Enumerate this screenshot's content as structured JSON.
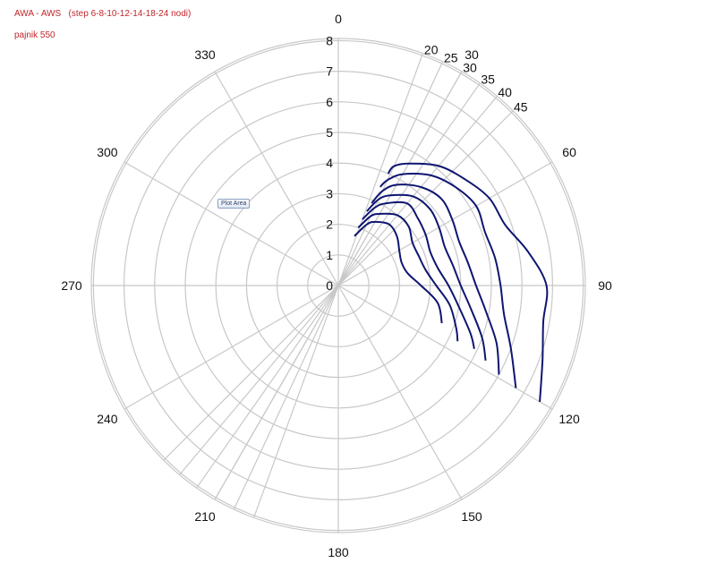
{
  "chart_data": {
    "type": "polar-line",
    "title": "AWA - AWS   (step 6-8-10-12-14-18-24 nodi)",
    "subtitle": "pajnik 550",
    "radial_axis": {
      "range": [
        0,
        8
      ],
      "ticks": [
        "0",
        "1",
        "2",
        "3",
        "4",
        "5",
        "6",
        "7",
        "8"
      ]
    },
    "angular_axis": {
      "ticks": [
        "0",
        "30",
        "60",
        "90",
        "120",
        "150",
        "180",
        "210",
        "240",
        "270",
        "300",
        "330"
      ]
    },
    "angle_annotations": [
      "20",
      "25",
      "30",
      "35",
      "40",
      "45"
    ],
    "grid": true,
    "tooltip": "Plot Area",
    "series": [
      {
        "values": [
          [
            18,
            1.7
          ],
          [
            25,
            2.2
          ],
          [
            30,
            2.4
          ],
          [
            40,
            2.6
          ],
          [
            50,
            2.5
          ],
          [
            60,
            2.3
          ],
          [
            70,
            2.2
          ],
          [
            80,
            2.3
          ],
          [
            90,
            2.7
          ],
          [
            100,
            3.3
          ],
          [
            110,
            3.6
          ]
        ]
      },
      {
        "values": [
          [
            19,
            2.0
          ],
          [
            25,
            2.5
          ],
          [
            30,
            2.7
          ],
          [
            40,
            3.0
          ],
          [
            50,
            3.0
          ],
          [
            60,
            2.8
          ],
          [
            70,
            2.8
          ],
          [
            80,
            2.9
          ],
          [
            90,
            3.2
          ],
          [
            100,
            3.7
          ],
          [
            110,
            4.1
          ],
          [
            115,
            4.3
          ]
        ]
      },
      {
        "values": [
          [
            20,
            2.3
          ],
          [
            25,
            2.8
          ],
          [
            30,
            3.1
          ],
          [
            40,
            3.5
          ],
          [
            50,
            3.4
          ],
          [
            60,
            3.3
          ],
          [
            70,
            3.2
          ],
          [
            80,
            3.3
          ],
          [
            90,
            3.6
          ],
          [
            100,
            4.0
          ],
          [
            110,
            4.6
          ],
          [
            115,
            4.9
          ]
        ]
      },
      {
        "values": [
          [
            21,
            2.6
          ],
          [
            25,
            3.1
          ],
          [
            30,
            3.4
          ],
          [
            40,
            3.8
          ],
          [
            50,
            3.9
          ],
          [
            60,
            3.8
          ],
          [
            70,
            3.7
          ],
          [
            80,
            3.8
          ],
          [
            90,
            4.0
          ],
          [
            100,
            4.4
          ],
          [
            110,
            5.0
          ],
          [
            117,
            5.4
          ]
        ]
      },
      {
        "values": [
          [
            22,
            2.9
          ],
          [
            25,
            3.4
          ],
          [
            30,
            3.8
          ],
          [
            40,
            4.2
          ],
          [
            50,
            4.4
          ],
          [
            60,
            4.3
          ],
          [
            70,
            4.2
          ],
          [
            80,
            4.3
          ],
          [
            90,
            4.5
          ],
          [
            100,
            4.9
          ],
          [
            110,
            5.5
          ],
          [
            119,
            6.0
          ]
        ]
      },
      {
        "values": [
          [
            23,
            3.5
          ],
          [
            25,
            3.8
          ],
          [
            30,
            4.2
          ],
          [
            40,
            4.7
          ],
          [
            50,
            5.0
          ],
          [
            60,
            5.2
          ],
          [
            70,
            5.1
          ],
          [
            80,
            5.2
          ],
          [
            90,
            5.3
          ],
          [
            100,
            5.5
          ],
          [
            110,
            6.0
          ],
          [
            120,
            6.7
          ]
        ]
      },
      {
        "values": [
          [
            24,
            4.0
          ],
          [
            25,
            4.3
          ],
          [
            30,
            4.6
          ],
          [
            40,
            5.1
          ],
          [
            50,
            5.4
          ],
          [
            60,
            5.7
          ],
          [
            70,
            5.8
          ],
          [
            80,
            6.3
          ],
          [
            90,
            6.8
          ],
          [
            100,
            6.8
          ],
          [
            110,
            7.1
          ],
          [
            120,
            7.6
          ]
        ]
      }
    ]
  },
  "colors": {
    "series": "#0d1570",
    "grid": "#c8c8c8",
    "title": "#c0262c"
  },
  "icons": {
    "tooltip": "plot-area-tooltip"
  }
}
